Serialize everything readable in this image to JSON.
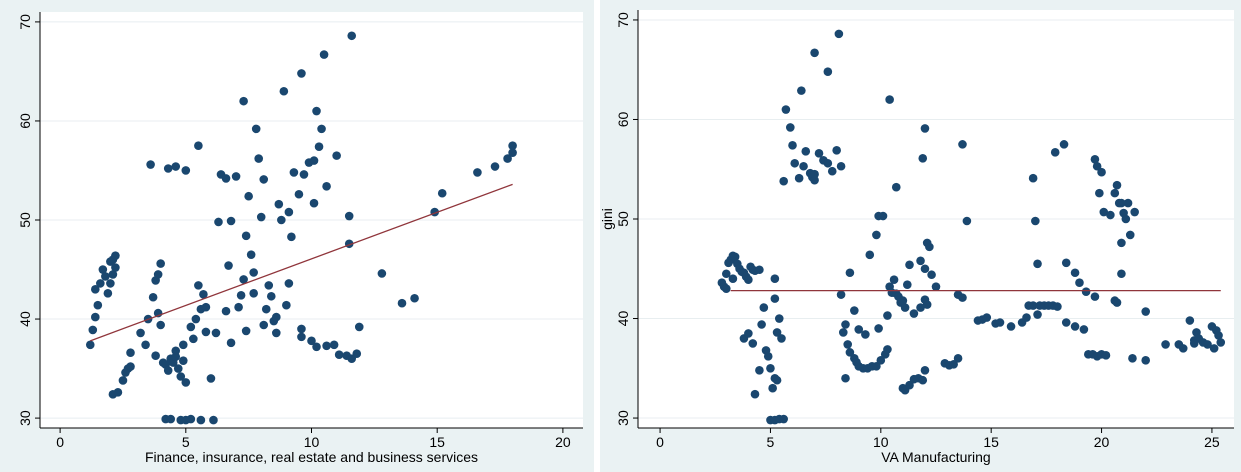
{
  "chart_data": [
    {
      "type": "scatter",
      "title": "",
      "xlabel": "Finance, insurance, real estate and business services",
      "ylabel": "",
      "xlim": [
        -0.8,
        20.8
      ],
      "ylim": [
        29,
        71
      ],
      "xticks": [
        "0",
        "5",
        "10",
        "15",
        "20"
      ],
      "yticks": [
        "30",
        "40",
        "50",
        "60",
        "70"
      ],
      "grid": true,
      "marker_color": "#1a476f",
      "fit_color": "#90353b",
      "fit_line": {
        "x": [
          1.2,
          18.0
        ],
        "y": [
          37.8,
          53.6
        ]
      },
      "points": [
        [
          1.2,
          37.4
        ],
        [
          1.3,
          38.9
        ],
        [
          1.4,
          40.2
        ],
        [
          1.5,
          41.4
        ],
        [
          1.6,
          43.6
        ],
        [
          1.7,
          45.0
        ],
        [
          1.8,
          44.3
        ],
        [
          1.9,
          42.6
        ],
        [
          2.0,
          43.6
        ],
        [
          2.0,
          45.8
        ],
        [
          2.1,
          44.5
        ],
        [
          2.1,
          46.0
        ],
        [
          2.2,
          45.2
        ],
        [
          2.2,
          46.4
        ],
        [
          1.4,
          43.0
        ],
        [
          2.1,
          32.4
        ],
        [
          2.3,
          32.6
        ],
        [
          2.5,
          33.8
        ],
        [
          2.6,
          34.6
        ],
        [
          2.7,
          35.0
        ],
        [
          2.8,
          36.6
        ],
        [
          2.8,
          35.2
        ],
        [
          3.2,
          38.6
        ],
        [
          3.4,
          37.4
        ],
        [
          3.5,
          40.0
        ],
        [
          3.6,
          55.6
        ],
        [
          3.7,
          42.2
        ],
        [
          3.8,
          43.9
        ],
        [
          3.9,
          44.5
        ],
        [
          4.0,
          45.6
        ],
        [
          3.9,
          40.6
        ],
        [
          4.0,
          39.4
        ],
        [
          4.1,
          35.6
        ],
        [
          4.2,
          35.4
        ],
        [
          4.3,
          34.8
        ],
        [
          4.4,
          36.0
        ],
        [
          4.5,
          35.6
        ],
        [
          4.6,
          36.2
        ],
        [
          4.7,
          35.0
        ],
        [
          4.8,
          34.2
        ],
        [
          4.9,
          37.4
        ],
        [
          5.0,
          33.6
        ],
        [
          4.3,
          55.2
        ],
        [
          4.6,
          55.4
        ],
        [
          5.0,
          55.0
        ],
        [
          4.2,
          29.9
        ],
        [
          4.4,
          29.9
        ],
        [
          4.8,
          29.8
        ],
        [
          5.0,
          29.8
        ],
        [
          5.2,
          29.9
        ],
        [
          5.6,
          29.8
        ],
        [
          6.1,
          29.8
        ],
        [
          5.3,
          38.0
        ],
        [
          5.4,
          40.0
        ],
        [
          5.5,
          43.4
        ],
        [
          5.6,
          41.0
        ],
        [
          5.7,
          42.5
        ],
        [
          5.8,
          38.7
        ],
        [
          6.0,
          34.0
        ],
        [
          6.3,
          49.8
        ],
        [
          6.4,
          54.6
        ],
        [
          6.6,
          54.2
        ],
        [
          6.7,
          45.4
        ],
        [
          6.8,
          49.9
        ],
        [
          7.0,
          54.4
        ],
        [
          7.1,
          41.2
        ],
        [
          7.2,
          42.4
        ],
        [
          7.3,
          44.0
        ],
        [
          7.4,
          48.4
        ],
        [
          7.5,
          52.4
        ],
        [
          7.6,
          46.5
        ],
        [
          7.7,
          44.7
        ],
        [
          7.8,
          59.2
        ],
        [
          7.9,
          56.2
        ],
        [
          8.0,
          50.3
        ],
        [
          8.1,
          54.1
        ],
        [
          8.2,
          41.0
        ],
        [
          8.4,
          42.3
        ],
        [
          8.5,
          39.8
        ],
        [
          8.6,
          38.6
        ],
        [
          7.3,
          62.0
        ],
        [
          5.5,
          57.5
        ],
        [
          8.7,
          51.6
        ],
        [
          8.8,
          50.0
        ],
        [
          8.9,
          63.0
        ],
        [
          9.1,
          50.8
        ],
        [
          9.2,
          48.3
        ],
        [
          9.3,
          54.8
        ],
        [
          9.5,
          52.6
        ],
        [
          9.6,
          64.8
        ],
        [
          9.7,
          54.6
        ],
        [
          9.9,
          55.8
        ],
        [
          10.1,
          56.0
        ],
        [
          10.2,
          61.0
        ],
        [
          10.3,
          57.4
        ],
        [
          10.4,
          59.2
        ],
        [
          10.5,
          66.7
        ],
        [
          10.6,
          53.4
        ],
        [
          10.1,
          51.7
        ],
        [
          11.0,
          56.5
        ],
        [
          11.5,
          50.4
        ],
        [
          11.6,
          68.6
        ],
        [
          10.0,
          37.8
        ],
        [
          10.2,
          37.2
        ],
        [
          10.6,
          37.3
        ],
        [
          10.9,
          37.4
        ],
        [
          11.1,
          36.4
        ],
        [
          11.4,
          36.3
        ],
        [
          11.6,
          36.0
        ],
        [
          11.8,
          36.5
        ],
        [
          11.9,
          39.2
        ],
        [
          9.6,
          38.2
        ],
        [
          9.6,
          39.0
        ],
        [
          11.5,
          47.6
        ],
        [
          12.8,
          44.6
        ],
        [
          13.6,
          41.6
        ],
        [
          14.1,
          42.1
        ],
        [
          14.9,
          50.8
        ],
        [
          15.2,
          52.7
        ],
        [
          16.6,
          54.8
        ],
        [
          17.3,
          55.4
        ],
        [
          17.8,
          56.2
        ],
        [
          18.0,
          56.8
        ],
        [
          18.0,
          57.5
        ],
        [
          6.8,
          37.6
        ],
        [
          7.4,
          38.8
        ],
        [
          8.1,
          39.4
        ],
        [
          8.6,
          40.2
        ],
        [
          9.0,
          41.4
        ],
        [
          5.8,
          41.2
        ],
        [
          6.6,
          40.8
        ],
        [
          7.7,
          42.6
        ],
        [
          8.3,
          43.4
        ],
        [
          9.1,
          43.6
        ],
        [
          6.2,
          38.6
        ],
        [
          5.2,
          39.2
        ],
        [
          4.6,
          36.8
        ],
        [
          4.9,
          35.8
        ],
        [
          3.8,
          36.3
        ]
      ]
    },
    {
      "type": "scatter",
      "title": "",
      "xlabel": "VA Manufacturing",
      "ylabel": "gini",
      "xlim": [
        -1.0,
        26.0
      ],
      "ylim": [
        29,
        71
      ],
      "xticks": [
        "0",
        "5",
        "10",
        "15",
        "20",
        "25"
      ],
      "yticks": [
        "30",
        "40",
        "50",
        "60",
        "70"
      ],
      "grid": true,
      "marker_color": "#1a476f",
      "fit_color": "#90353b",
      "fit_line": {
        "x": [
          3.2,
          25.4
        ],
        "y": [
          42.8,
          42.8
        ]
      },
      "points": [
        [
          2.8,
          43.6
        ],
        [
          2.9,
          43.2
        ],
        [
          3.0,
          44.5
        ],
        [
          3.1,
          45.6
        ],
        [
          3.2,
          45.9
        ],
        [
          3.3,
          46.3
        ],
        [
          3.4,
          46.2
        ],
        [
          3.5,
          45.5
        ],
        [
          3.6,
          45.0
        ],
        [
          3.7,
          44.7
        ],
        [
          3.8,
          44.6
        ],
        [
          3.9,
          44.2
        ],
        [
          4.0,
          43.9
        ],
        [
          4.1,
          45.2
        ],
        [
          4.2,
          44.9
        ],
        [
          4.3,
          44.8
        ],
        [
          4.5,
          44.9
        ],
        [
          3.0,
          43.0
        ],
        [
          3.3,
          44.0
        ],
        [
          3.8,
          38.0
        ],
        [
          4.0,
          38.5
        ],
        [
          4.2,
          37.5
        ],
        [
          4.3,
          32.4
        ],
        [
          4.5,
          34.8
        ],
        [
          4.6,
          39.4
        ],
        [
          4.7,
          41.1
        ],
        [
          4.8,
          36.8
        ],
        [
          4.9,
          36.2
        ],
        [
          5.0,
          35.0
        ],
        [
          5.1,
          33.0
        ],
        [
          5.2,
          34.0
        ],
        [
          5.3,
          33.8
        ],
        [
          5.3,
          38.6
        ],
        [
          5.4,
          40.0
        ],
        [
          5.2,
          42.0
        ],
        [
          5.2,
          44.0
        ],
        [
          5.5,
          38.0
        ],
        [
          5.0,
          29.8
        ],
        [
          5.2,
          29.8
        ],
        [
          5.4,
          29.9
        ],
        [
          5.6,
          29.9
        ],
        [
          5.6,
          53.8
        ],
        [
          5.7,
          61.0
        ],
        [
          5.9,
          59.2
        ],
        [
          6.0,
          57.4
        ],
        [
          6.1,
          55.6
        ],
        [
          6.3,
          54.1
        ],
        [
          6.5,
          55.3
        ],
        [
          6.6,
          56.8
        ],
        [
          6.8,
          54.6
        ],
        [
          6.9,
          54.2
        ],
        [
          7.0,
          53.9
        ],
        [
          7.2,
          56.6
        ],
        [
          7.4,
          55.9
        ],
        [
          7.6,
          55.6
        ],
        [
          7.8,
          54.8
        ],
        [
          8.0,
          56.9
        ],
        [
          8.2,
          55.3
        ],
        [
          6.4,
          62.9
        ],
        [
          7.0,
          66.7
        ],
        [
          7.6,
          64.8
        ],
        [
          8.1,
          68.6
        ],
        [
          7.0,
          54.5
        ],
        [
          8.2,
          42.4
        ],
        [
          8.3,
          38.6
        ],
        [
          8.4,
          39.4
        ],
        [
          8.5,
          37.4
        ],
        [
          8.6,
          36.6
        ],
        [
          8.8,
          36.0
        ],
        [
          8.9,
          35.6
        ],
        [
          9.0,
          35.2
        ],
        [
          9.2,
          35.0
        ],
        [
          9.4,
          35.0
        ],
        [
          9.6,
          35.2
        ],
        [
          9.8,
          35.2
        ],
        [
          10.0,
          35.8
        ],
        [
          10.2,
          36.4
        ],
        [
          10.3,
          36.9
        ],
        [
          8.4,
          34.0
        ],
        [
          8.6,
          44.6
        ],
        [
          8.8,
          40.8
        ],
        [
          9.0,
          38.9
        ],
        [
          9.3,
          38.4
        ],
        [
          9.9,
          39.0
        ],
        [
          9.5,
          46.4
        ],
        [
          9.8,
          48.4
        ],
        [
          9.9,
          50.3
        ],
        [
          10.1,
          50.3
        ],
        [
          10.3,
          40.3
        ],
        [
          10.4,
          43.2
        ],
        [
          10.5,
          42.6
        ],
        [
          10.6,
          43.9
        ],
        [
          10.7,
          42.5
        ],
        [
          10.8,
          42.2
        ],
        [
          10.9,
          41.6
        ],
        [
          11.0,
          41.8
        ],
        [
          11.1,
          41.1
        ],
        [
          11.2,
          43.4
        ],
        [
          11.3,
          45.4
        ],
        [
          11.5,
          40.5
        ],
        [
          11.8,
          41.1
        ],
        [
          10.4,
          62.0
        ],
        [
          10.7,
          53.2
        ],
        [
          11.9,
          56.1
        ],
        [
          12.0,
          59.1
        ],
        [
          11.0,
          33.0
        ],
        [
          11.1,
          32.8
        ],
        [
          11.3,
          33.3
        ],
        [
          11.5,
          33.9
        ],
        [
          11.7,
          34.0
        ],
        [
          11.9,
          33.8
        ],
        [
          12.0,
          34.8
        ],
        [
          11.8,
          45.8
        ],
        [
          12.0,
          45.0
        ],
        [
          12.1,
          47.6
        ],
        [
          12.2,
          47.2
        ],
        [
          12.3,
          44.4
        ],
        [
          12.5,
          43.2
        ],
        [
          12.0,
          41.9
        ],
        [
          12.1,
          41.4
        ],
        [
          12.9,
          35.5
        ],
        [
          13.1,
          35.3
        ],
        [
          13.3,
          35.4
        ],
        [
          13.5,
          36.0
        ],
        [
          13.5,
          42.4
        ],
        [
          13.7,
          42.1
        ],
        [
          13.7,
          57.5
        ],
        [
          13.9,
          49.8
        ],
        [
          14.4,
          39.8
        ],
        [
          14.6,
          39.9
        ],
        [
          14.8,
          40.1
        ],
        [
          15.2,
          39.5
        ],
        [
          15.4,
          39.6
        ],
        [
          15.9,
          39.2
        ],
        [
          16.4,
          39.6
        ],
        [
          16.6,
          40.1
        ],
        [
          16.7,
          41.3
        ],
        [
          16.9,
          41.3
        ],
        [
          17.2,
          41.3
        ],
        [
          17.4,
          41.3
        ],
        [
          17.6,
          41.3
        ],
        [
          17.8,
          41.3
        ],
        [
          18.0,
          41.2
        ],
        [
          16.9,
          54.1
        ],
        [
          17.0,
          49.8
        ],
        [
          17.1,
          45.5
        ],
        [
          17.1,
          40.4
        ],
        [
          17.9,
          56.7
        ],
        [
          18.3,
          57.5
        ],
        [
          18.4,
          45.6
        ],
        [
          18.8,
          44.6
        ],
        [
          19.0,
          43.6
        ],
        [
          19.3,
          42.7
        ],
        [
          18.4,
          39.6
        ],
        [
          18.8,
          39.2
        ],
        [
          19.2,
          38.9
        ],
        [
          19.4,
          36.4
        ],
        [
          19.6,
          36.4
        ],
        [
          19.8,
          36.2
        ],
        [
          20.0,
          36.4
        ],
        [
          20.2,
          36.3
        ],
        [
          19.7,
          56.0
        ],
        [
          19.8,
          55.3
        ],
        [
          19.9,
          52.6
        ],
        [
          20.0,
          54.7
        ],
        [
          20.1,
          50.7
        ],
        [
          20.4,
          50.4
        ],
        [
          20.6,
          52.6
        ],
        [
          20.7,
          53.4
        ],
        [
          20.8,
          51.6
        ],
        [
          20.9,
          51.6
        ],
        [
          21.0,
          50.6
        ],
        [
          21.1,
          50.0
        ],
        [
          21.2,
          51.6
        ],
        [
          20.9,
          47.6
        ],
        [
          21.3,
          48.4
        ],
        [
          21.5,
          50.7
        ],
        [
          20.6,
          41.8
        ],
        [
          20.7,
          41.6
        ],
        [
          20.9,
          44.5
        ],
        [
          19.7,
          42.2
        ],
        [
          21.4,
          36.0
        ],
        [
          22.0,
          35.8
        ],
        [
          22.0,
          40.7
        ],
        [
          22.9,
          37.4
        ],
        [
          23.5,
          37.4
        ],
        [
          23.7,
          37.0
        ],
        [
          24.0,
          39.8
        ],
        [
          24.2,
          37.8
        ],
        [
          24.3,
          38.6
        ],
        [
          24.4,
          38.0
        ],
        [
          24.6,
          37.6
        ],
        [
          24.8,
          37.4
        ],
        [
          25.0,
          39.2
        ],
        [
          25.1,
          37.0
        ],
        [
          25.2,
          38.8
        ],
        [
          25.3,
          38.3
        ],
        [
          25.4,
          37.6
        ],
        [
          24.2,
          37.5
        ]
      ]
    }
  ]
}
